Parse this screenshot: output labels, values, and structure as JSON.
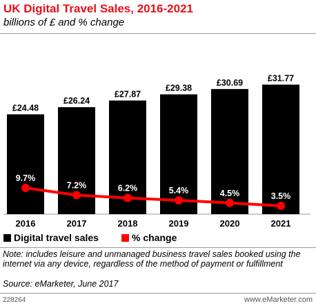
{
  "header": {
    "title": "UK Digital Travel Sales, 2016-2021",
    "subtitle": "billions of £ and % change"
  },
  "chart_data": {
    "type": "bar",
    "categories": [
      "2016",
      "2017",
      "2018",
      "2019",
      "2020",
      "2021"
    ],
    "series": [
      {
        "name": "Digital travel sales",
        "type": "bar",
        "values": [
          24.48,
          26.24,
          27.87,
          29.38,
          30.69,
          31.77
        ],
        "labels": [
          "£24.48",
          "£26.24",
          "£27.87",
          "£29.38",
          "£30.69",
          "£31.77"
        ],
        "color": "#000000"
      },
      {
        "name": "% change",
        "type": "line",
        "values": [
          9.7,
          7.2,
          6.2,
          5.4,
          4.5,
          3.5
        ],
        "labels": [
          "9.7%",
          "7.2%",
          "6.2%",
          "5.4%",
          "4.5%",
          "3.5%"
        ],
        "color": "#ff0000"
      }
    ],
    "legend_position": "bottom-left",
    "grid": false
  },
  "legend": {
    "bar_label": "Digital travel sales",
    "line_label": "% change"
  },
  "footer": {
    "note": "Note: includes leisure and unmanaged business travel sales booked using the internet via any device, regardless of the method of payment or fulfillment",
    "source": "Source: eMarketer, June 2017",
    "chart_id": "228264",
    "brand": "www.eMarketer.com"
  },
  "colors": {
    "title": "#e8101a",
    "bar": "#000000",
    "line": "#ff0000"
  }
}
